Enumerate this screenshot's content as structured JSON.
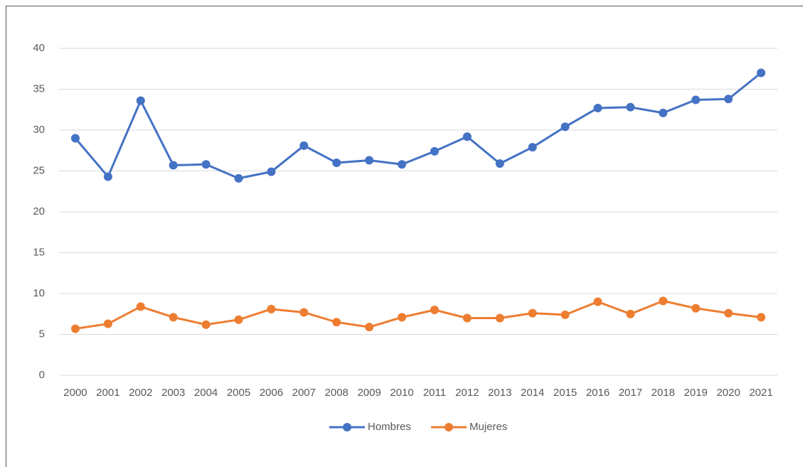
{
  "chart_data": {
    "type": "line",
    "categories": [
      "2000",
      "2001",
      "2002",
      "2003",
      "2004",
      "2005",
      "2006",
      "2007",
      "2008",
      "2009",
      "2010",
      "2011",
      "2012",
      "2013",
      "2014",
      "2015",
      "2016",
      "2017",
      "2018",
      "2019",
      "2020",
      "2021"
    ],
    "series": [
      {
        "name": "Hombres",
        "color": "#4472c4",
        "values": [
          29.0,
          24.3,
          33.6,
          25.7,
          25.8,
          24.1,
          24.9,
          28.1,
          26.0,
          26.3,
          25.8,
          27.4,
          29.2,
          25.9,
          27.9,
          30.4,
          32.7,
          32.8,
          32.1,
          33.7,
          33.8,
          37.0
        ]
      },
      {
        "name": "Mujeres",
        "color": "#ed7d31",
        "values": [
          5.7,
          6.3,
          8.4,
          7.1,
          6.2,
          6.8,
          8.1,
          7.7,
          6.5,
          5.9,
          7.1,
          8.0,
          7.0,
          7.0,
          7.6,
          7.4,
          9.0,
          7.5,
          9.1,
          8.2,
          7.6,
          7.1
        ]
      }
    ],
    "ylim": [
      0,
      40
    ],
    "yticks": [
      0,
      5,
      10,
      15,
      20,
      25,
      30,
      35,
      40
    ],
    "grid": true,
    "legend": "bottom"
  }
}
